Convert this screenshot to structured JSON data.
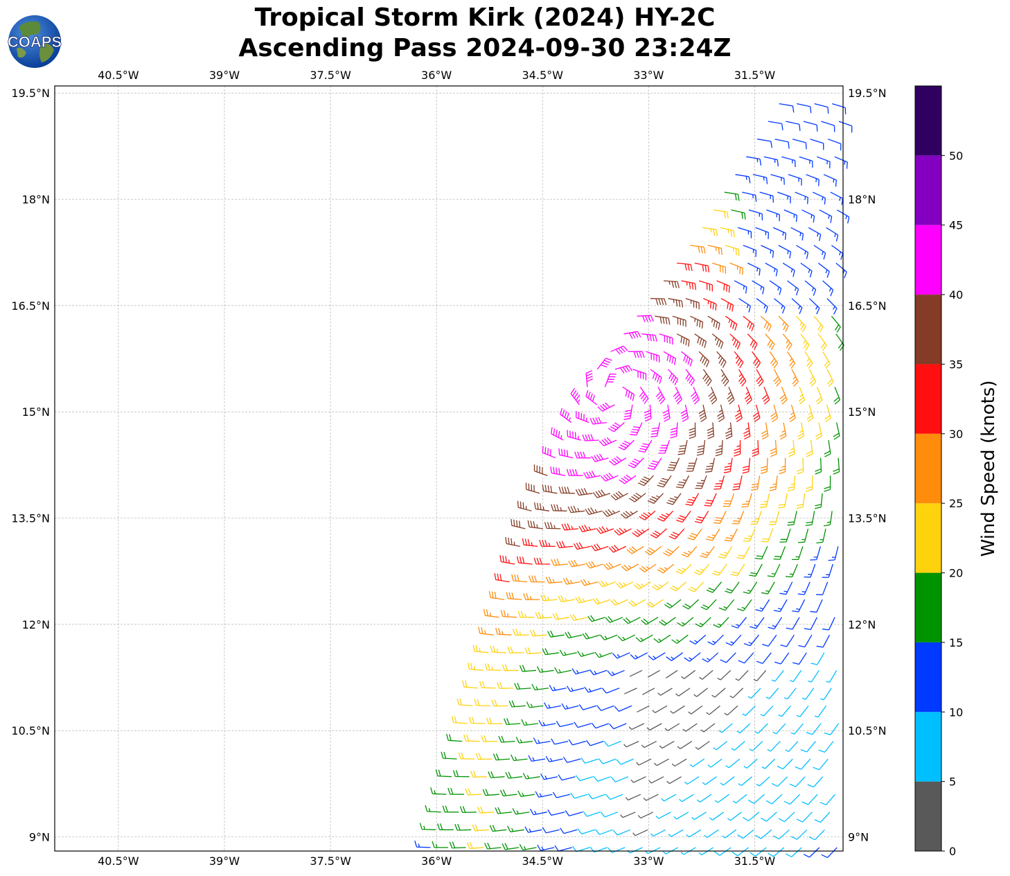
{
  "title": {
    "line1": "Tropical Storm Kirk (2024) HY-2C",
    "line2": "Ascending Pass 2024-09-30 23:24Z"
  },
  "logo": {
    "text": "COAPS",
    "icon": "globe-icon"
  },
  "map": {
    "type": "wind-barb-map",
    "lon_range": [
      -41.4,
      -30.25
    ],
    "lat_range": [
      8.8,
      19.6
    ],
    "grid": true,
    "lon_ticks": [
      "40.5°W",
      "39°W",
      "37.5°W",
      "36°W",
      "34.5°W",
      "33°W",
      "31.5°W"
    ],
    "lat_ticks": [
      "9°N",
      "10.5°N",
      "12°N",
      "13.5°N",
      "15°N",
      "16.5°N",
      "18°N",
      "19.5°N"
    ],
    "lon_tick_values": [
      -40.5,
      -39,
      -37.5,
      -36,
      -34.5,
      -33,
      -31.5
    ],
    "lat_tick_values": [
      9,
      10.5,
      12,
      13.5,
      15,
      16.5,
      18,
      19.5
    ],
    "storm_center": {
      "lon": -33.5,
      "lat": 15.25
    },
    "swath_left_edge": [
      [
        -36.1,
        8.8
      ],
      [
        -34.7,
        13.5
      ],
      [
        -33.8,
        15.5
      ],
      [
        -32.3,
        17.5
      ],
      [
        -31.0,
        19.6
      ]
    ]
  },
  "colorbar": {
    "label": "Wind Speed (knots)",
    "ticks": [
      "0",
      "5",
      "10",
      "15",
      "20",
      "25",
      "30",
      "35",
      "40",
      "45",
      "50"
    ],
    "range": [
      0,
      55
    ],
    "colors": [
      "#595959",
      "#00bfff",
      "#0039ff",
      "#009300",
      "#ffd20e",
      "#ff8c0a",
      "#ff0f0f",
      "#843c26",
      "#ff00ff",
      "#8400c0",
      "#2f0060"
    ]
  }
}
